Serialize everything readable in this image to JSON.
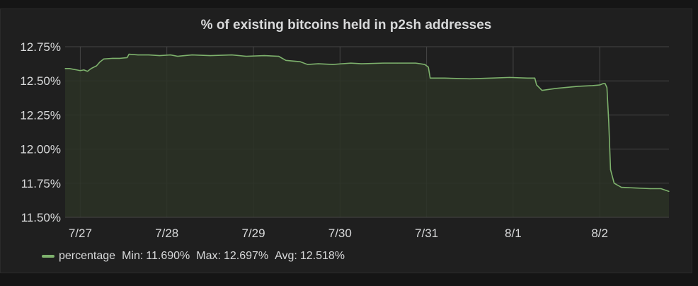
{
  "panel": {
    "title": "% of existing bitcoins held in p2sh addresses"
  },
  "legend": {
    "series_name": "percentage",
    "min_label": "Min:",
    "min_value": "11.690%",
    "max_label": "Max:",
    "max_value": "12.697%",
    "avg_label": "Avg:",
    "avg_value": "12.518%"
  },
  "colors": {
    "series": "#7eb26d",
    "fill": "#2c3326",
    "grid": "#464646",
    "text": "#d8d9da",
    "panel_bg": "#1f1f1f"
  },
  "chart_data": {
    "type": "line",
    "title": "% of existing bitcoins held in p2sh addresses",
    "ylim": [
      11.5,
      12.75
    ],
    "y_ticks": [
      {
        "value": 12.75,
        "label": "12.75%"
      },
      {
        "value": 12.5,
        "label": "12.50%"
      },
      {
        "value": 12.25,
        "label": "12.25%"
      },
      {
        "value": 12.0,
        "label": "12.00%"
      },
      {
        "value": 11.75,
        "label": "11.75%"
      },
      {
        "value": 11.5,
        "label": "11.50%"
      }
    ],
    "xlim": [
      "7/26 19:48",
      "8/2 19:12"
    ],
    "x_ticks": [
      "7/27",
      "7/28",
      "7/29",
      "7/30",
      "7/31",
      "8/1",
      "8/2"
    ],
    "grid": true,
    "legend_position": "bottom-left",
    "series": [
      {
        "name": "percentage",
        "x": [
          "7/26 19:48",
          "7/26 21:00",
          "7/26 22:00",
          "7/26 23:00",
          "7/27 00:00",
          "7/27 01:00",
          "7/27 02:00",
          "7/27 03:00",
          "7/27 04:30",
          "7/27 05:30",
          "7/27 06:30",
          "7/27 09:00",
          "7/27 11:00",
          "7/27 13:00",
          "7/27 13:30",
          "7/27 16:00",
          "7/27 19:00",
          "7/27 22:00",
          "7/28 01:00",
          "7/28 03:00",
          "7/28 07:00",
          "7/28 12:00",
          "7/28 18:00",
          "7/28 22:00",
          "7/29 03:00",
          "7/29 07:00",
          "7/29 09:00",
          "7/29 13:00",
          "7/29 15:00",
          "7/29 18:00",
          "7/29 22:00",
          "7/30 03:00",
          "7/30 06:00",
          "7/30 12:00",
          "7/30 16:00",
          "7/30 21:00",
          "7/30 23:30",
          "7/31 00:30",
          "7/31 01:00",
          "7/31 05:00",
          "7/31 12:00",
          "7/31 18:00",
          "7/31 23:00",
          "8/1 04:00",
          "8/1 06:00",
          "8/1 06:30",
          "8/1 08:00",
          "8/1 12:00",
          "8/1 18:00",
          "8/1 22:00",
          "8/2 00:00",
          "8/2 01:00",
          "8/2 01:30",
          "8/2 02:00",
          "8/2 02:30",
          "8/2 03:00",
          "8/2 04:00",
          "8/2 06:00",
          "8/2 10:00",
          "8/2 14:00",
          "8/2 17:00",
          "8/2 19:12"
        ],
        "values": [
          12.59,
          12.59,
          12.585,
          12.58,
          12.575,
          12.58,
          12.57,
          12.59,
          12.61,
          12.64,
          12.66,
          12.665,
          12.665,
          12.67,
          12.695,
          12.69,
          12.69,
          12.685,
          12.69,
          12.68,
          12.69,
          12.685,
          12.69,
          12.68,
          12.685,
          12.68,
          12.65,
          12.64,
          12.62,
          12.625,
          12.62,
          12.63,
          12.625,
          12.63,
          12.63,
          12.63,
          12.62,
          12.6,
          12.52,
          12.52,
          12.515,
          12.52,
          12.525,
          12.52,
          12.52,
          12.47,
          12.43,
          12.445,
          12.46,
          12.465,
          12.47,
          12.48,
          12.48,
          12.45,
          12.2,
          11.85,
          11.75,
          11.72,
          11.715,
          11.71,
          11.71,
          11.69
        ]
      }
    ]
  }
}
